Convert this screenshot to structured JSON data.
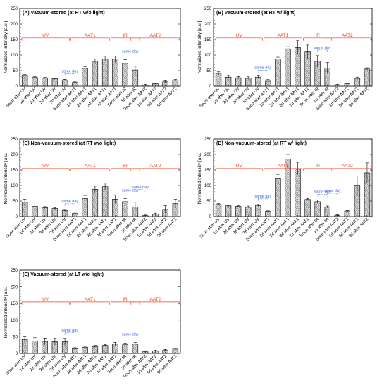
{
  "groups": [
    {
      "label": "UV",
      "start": 0,
      "end": 4
    },
    {
      "label": "AAT1",
      "start": 5,
      "end": 9
    },
    {
      "label": "IR",
      "start": 9,
      "end": 11
    },
    {
      "label": "AAT2",
      "start": 11,
      "end": 15
    }
  ],
  "annotation": "same day",
  "colors": {
    "group": "#e8462a",
    "sameday": "#3a66e0",
    "bar_fill": "#dcdcdc",
    "axis": "#000000"
  },
  "chart_data": [
    {
      "type": "bar",
      "panel": "A",
      "title": "(A) Vacuum-stored (at RT w/o light)",
      "xlabel": "",
      "ylabel": "Normalized intensity [a.u.]",
      "ylim": [
        0,
        250
      ],
      "yticks": [
        0,
        50,
        100,
        150,
        200,
        250
      ],
      "categories": [
        "Soon after UV",
        "1d after UV",
        "2d after UV",
        "3d after UV",
        "7d after UV",
        "Soon after AAT1",
        "1d after AAT1",
        "2d after AAT1",
        "3d after AAT1",
        "7d after AAT1",
        "Soon after IR",
        "1d after IR",
        "Soon after AAT2",
        "1d after AAT2",
        "5d after AAT2",
        "9d after AAT2"
      ],
      "values": [
        34,
        28,
        26,
        24,
        20,
        12,
        57,
        80,
        88,
        87,
        73,
        52,
        4,
        8,
        14,
        19
      ],
      "errors": [
        3,
        3,
        2,
        2,
        2,
        2,
        5,
        8,
        8,
        10,
        12,
        12,
        2,
        2,
        3,
        3
      ],
      "same_day": [
        [
          4,
          5
        ],
        [
          10,
          11
        ]
      ]
    },
    {
      "type": "bar",
      "panel": "B",
      "title": "(B) Vacuum-stored (at RT w/ light)",
      "xlabel": "",
      "ylabel": "Normalized intensity [a.u.]",
      "ylim": [
        0,
        250
      ],
      "yticks": [
        0,
        50,
        100,
        150,
        200,
        250
      ],
      "categories": [
        "Soon after UV",
        "1d after UV",
        "2d after UV",
        "3d after UV",
        "7d after UV",
        "Soon after AAT1",
        "1d after AAT1",
        "2d after AAT1",
        "3d after AAT1",
        "7d after AAT1",
        "Soon after IR",
        "1d after IR",
        "Soon after AAT2",
        "1d after AAT2",
        "5d after AAT2",
        "9d after AAT2"
      ],
      "values": [
        41,
        29,
        27,
        26,
        29,
        16,
        87,
        120,
        124,
        110,
        80,
        58,
        4,
        8,
        25,
        55
      ],
      "errors": [
        5,
        5,
        4,
        4,
        4,
        5,
        6,
        7,
        22,
        22,
        18,
        18,
        2,
        2,
        4,
        4
      ],
      "same_day": [
        [
          4,
          5
        ],
        [
          10,
          11
        ]
      ]
    },
    {
      "type": "bar",
      "panel": "C",
      "title": "(C) Non-vacuum-stored (at RT w/o light)",
      "xlabel": "",
      "ylabel": "Normalized intensity [a.u.]",
      "ylim": [
        0,
        250
      ],
      "yticks": [
        0,
        50,
        100,
        150,
        200,
        250
      ],
      "categories": [
        "Soon after UV",
        "1d after UV",
        "2d after UV",
        "3d after UV",
        "7d after UV",
        "Soon after AAT1",
        "1d after AAT1",
        "2d after AAT1",
        "3d after AAT1",
        "7d after AAT1",
        "Soon after IR",
        "1d after IR",
        "Soon after AAT2",
        "1d after AAT2",
        "5d after AAT2",
        "9d after AAT2"
      ],
      "values": [
        46,
        33,
        29,
        26,
        20,
        10,
        58,
        88,
        96,
        56,
        48,
        31,
        3,
        8,
        23,
        42
      ],
      "errors": [
        10,
        4,
        3,
        3,
        3,
        4,
        10,
        10,
        12,
        14,
        10,
        15,
        2,
        3,
        12,
        14
      ],
      "same_day": [
        [
          4,
          5
        ],
        [
          10,
          11
        ],
        [
          11,
          12
        ]
      ]
    },
    {
      "type": "bar",
      "panel": "D",
      "title": "(D) Non-vacuum-stored (at RT w/ light)",
      "xlabel": "",
      "ylabel": "Normalized intensity [a.u.]",
      "ylim": [
        0,
        250
      ],
      "yticks": [
        0,
        50,
        100,
        150,
        200,
        250
      ],
      "categories": [
        "Soon after UV",
        "1d after UV",
        "2d after UV",
        "3d after UV",
        "7d after UV",
        "Soon after AAT1",
        "1d after AAT1",
        "2d after AAT1",
        "3d after AAT1",
        "7d after AAT1",
        "Soon after IR",
        "1d after IR",
        "Soon after AAT2",
        "1d after AAT2",
        "5d after AAT2",
        "9d after AAT2"
      ],
      "values": [
        39,
        35,
        33,
        31,
        36,
        17,
        122,
        185,
        155,
        55,
        48,
        31,
        4,
        18,
        101,
        141
      ],
      "errors": [
        3,
        3,
        3,
        3,
        3,
        3,
        14,
        15,
        20,
        3,
        5,
        3,
        2,
        2,
        30,
        32
      ],
      "same_day": [
        [
          4,
          5
        ],
        [
          10,
          11
        ],
        [
          11,
          12
        ]
      ]
    },
    {
      "type": "bar",
      "panel": "E",
      "title": "(E) Vacuum-stored (at LT w/o light)",
      "xlabel": "",
      "ylabel": "Normalized intensity [a.u.]",
      "ylim": [
        0,
        250
      ],
      "yticks": [
        0,
        50,
        100,
        150,
        200,
        250
      ],
      "categories": [
        "Soon after UV",
        "1d after UV",
        "2d after UV",
        "3d after UV",
        "7d after UV",
        "Soon after AAT1",
        "1d after AAT1",
        "2d after AAT1",
        "3d after AAT1",
        "7d after AAT1",
        "Soon after IR",
        "1d after IR",
        "Soon after AAT2",
        "1d after AAT2",
        "5d after AAT2",
        "9d after AAT2"
      ],
      "values": [
        42,
        37,
        36,
        35,
        35,
        14,
        18,
        21,
        24,
        28,
        26,
        28,
        5,
        7,
        9,
        13
      ],
      "errors": [
        10,
        10,
        10,
        10,
        10,
        3,
        3,
        3,
        3,
        5,
        5,
        5,
        3,
        3,
        3,
        3
      ],
      "same_day": [
        [
          4,
          5
        ],
        [
          10,
          11
        ]
      ]
    }
  ]
}
